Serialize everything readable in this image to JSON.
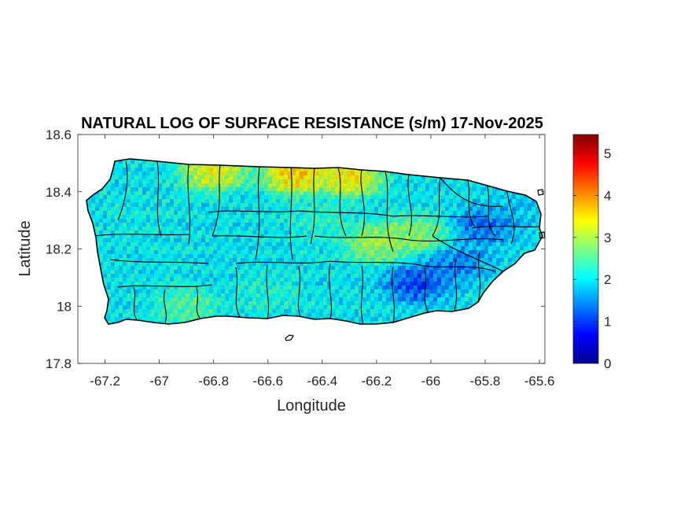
{
  "chart_data": {
    "type": "heatmap",
    "title": "NATURAL LOG OF SURFACE RESISTANCE (s/m) 17-Nov-2025",
    "xlabel": "Longitude",
    "ylabel": "Latitude",
    "xlim": [
      -67.3,
      -65.58
    ],
    "ylim": [
      17.8,
      18.6
    ],
    "xticks": [
      -67.2,
      -67,
      -66.8,
      -66.6,
      -66.4,
      -66.2,
      -66,
      -65.8,
      -65.6
    ],
    "xtick_labels": [
      "-67.2",
      "-67",
      "-66.8",
      "-66.6",
      "-66.4",
      "-66.2",
      "-66",
      "-65.8",
      "-65.6"
    ],
    "yticks": [
      17.8,
      18,
      18.2,
      18.4,
      18.6
    ],
    "ytick_labels": [
      "17.8",
      "18",
      "18.2",
      "18.4",
      "18.6"
    ],
    "colorbar": {
      "colormap": "jet",
      "range": [
        0,
        5.45
      ],
      "ticks": [
        0,
        1,
        2,
        3,
        4,
        5
      ],
      "tick_labels": [
        "0",
        "1",
        "2",
        "3",
        "4",
        "5"
      ]
    },
    "region": "Puerto Rico",
    "field_regions": [
      {
        "lon": -67.1,
        "lat": 18.3,
        "value": 2.1
      },
      {
        "lon": -66.8,
        "lat": 18.15,
        "value": 2.0
      },
      {
        "lon": -66.5,
        "lat": 18.46,
        "value": 4.3
      },
      {
        "lon": -66.8,
        "lat": 18.47,
        "value": 3.8
      },
      {
        "lon": -66.3,
        "lat": 18.45,
        "value": 4.0
      },
      {
        "lon": -66.2,
        "lat": 18.22,
        "value": 3.3
      },
      {
        "lon": -66.05,
        "lat": 18.25,
        "value": 3.1
      },
      {
        "lon": -66.05,
        "lat": 18.08,
        "value": 0.7
      },
      {
        "lon": -65.8,
        "lat": 18.28,
        "value": 1.0
      },
      {
        "lon": -65.9,
        "lat": 18.15,
        "value": 1.2
      },
      {
        "lon": -66.9,
        "lat": 18.0,
        "value": 2.7
      },
      {
        "lon": -66.6,
        "lat": 18.05,
        "value": 2.3
      },
      {
        "lon": -65.7,
        "lat": 18.35,
        "value": 1.7
      },
      {
        "lon": -66.4,
        "lat": 18.3,
        "value": 2.4
      }
    ],
    "grid": false,
    "legend": "none"
  }
}
